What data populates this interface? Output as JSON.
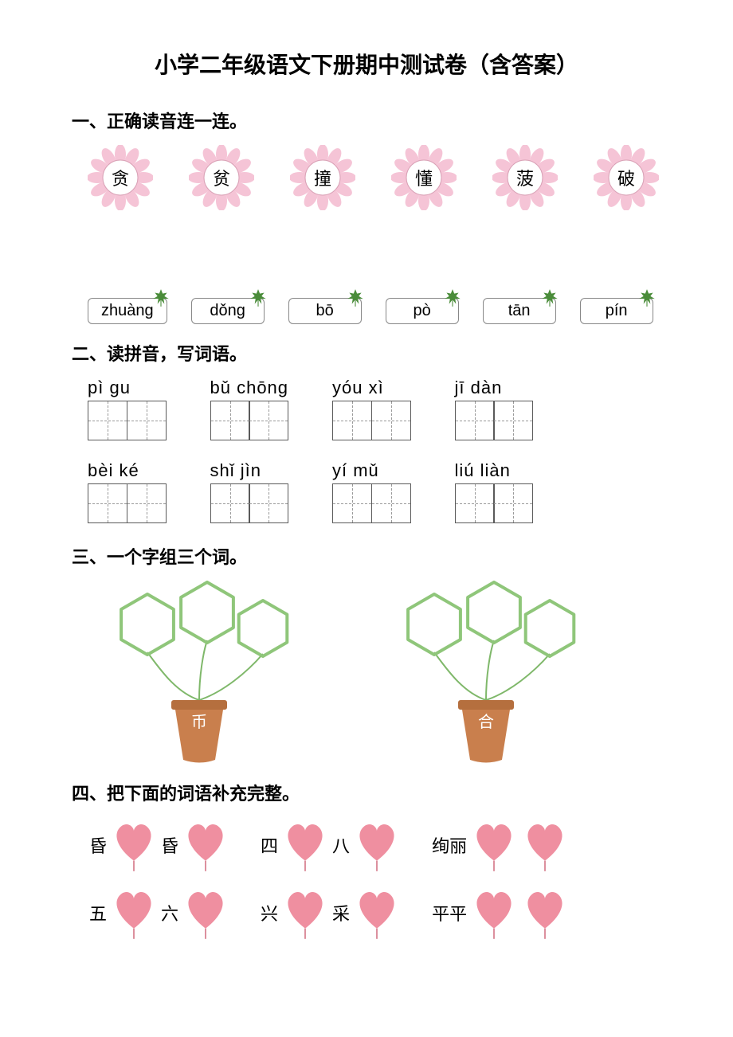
{
  "title": "小学二年级语文下册期中测试卷（含答案）",
  "sections": {
    "s1": {
      "header": "一、正确读音连一连。"
    },
    "s2": {
      "header": "二、读拼音，写词语。"
    },
    "s3": {
      "header": "三、一个字组三个词。"
    },
    "s4": {
      "header": "四、把下面的词语补充完整。"
    }
  },
  "flowers": {
    "chars": [
      "贪",
      "贫",
      "撞",
      "懂",
      "菠",
      "破"
    ],
    "petal_color": "#f5c4d6",
    "center_color": "#ffffff",
    "center_stroke": "#d9a0b5"
  },
  "leaf_boxes": {
    "labels": [
      "zhuàng",
      "dǒng",
      "bō",
      "pò",
      "tān",
      "pín"
    ],
    "leaf_color": "#4a8c3a"
  },
  "pinyin_words": {
    "row1": [
      "pì  gu",
      "bǔ chōng",
      "yóu  xì",
      "jī  dàn"
    ],
    "row2": [
      "bèi  ké",
      "shǐ  jìn",
      "yí  mǔ",
      "liú  liàn"
    ]
  },
  "pots": {
    "chars": [
      "币",
      "合"
    ],
    "pot_color": "#c97f4d",
    "pot_rim": "#b56f3e",
    "leaf_stroke": "#8fc67a",
    "stem_color": "#7fb86a"
  },
  "hearts": {
    "row1": [
      {
        "prefix": "昏",
        "mid": "昏",
        "suffix": "",
        "count": 2
      },
      {
        "prefix": "四",
        "mid": "八",
        "suffix": "",
        "count": 2
      },
      {
        "prefix": "绚丽",
        "mid": "",
        "suffix": "",
        "count": 2
      }
    ],
    "row2": [
      {
        "prefix": "五",
        "mid": "六",
        "suffix": "",
        "count": 2
      },
      {
        "prefix": "兴",
        "mid": "采",
        "suffix": "",
        "count": 2
      },
      {
        "prefix": "平平",
        "mid": "",
        "suffix": "",
        "count": 2
      }
    ],
    "fill": "#ef8fa0",
    "string": "#d47888"
  }
}
